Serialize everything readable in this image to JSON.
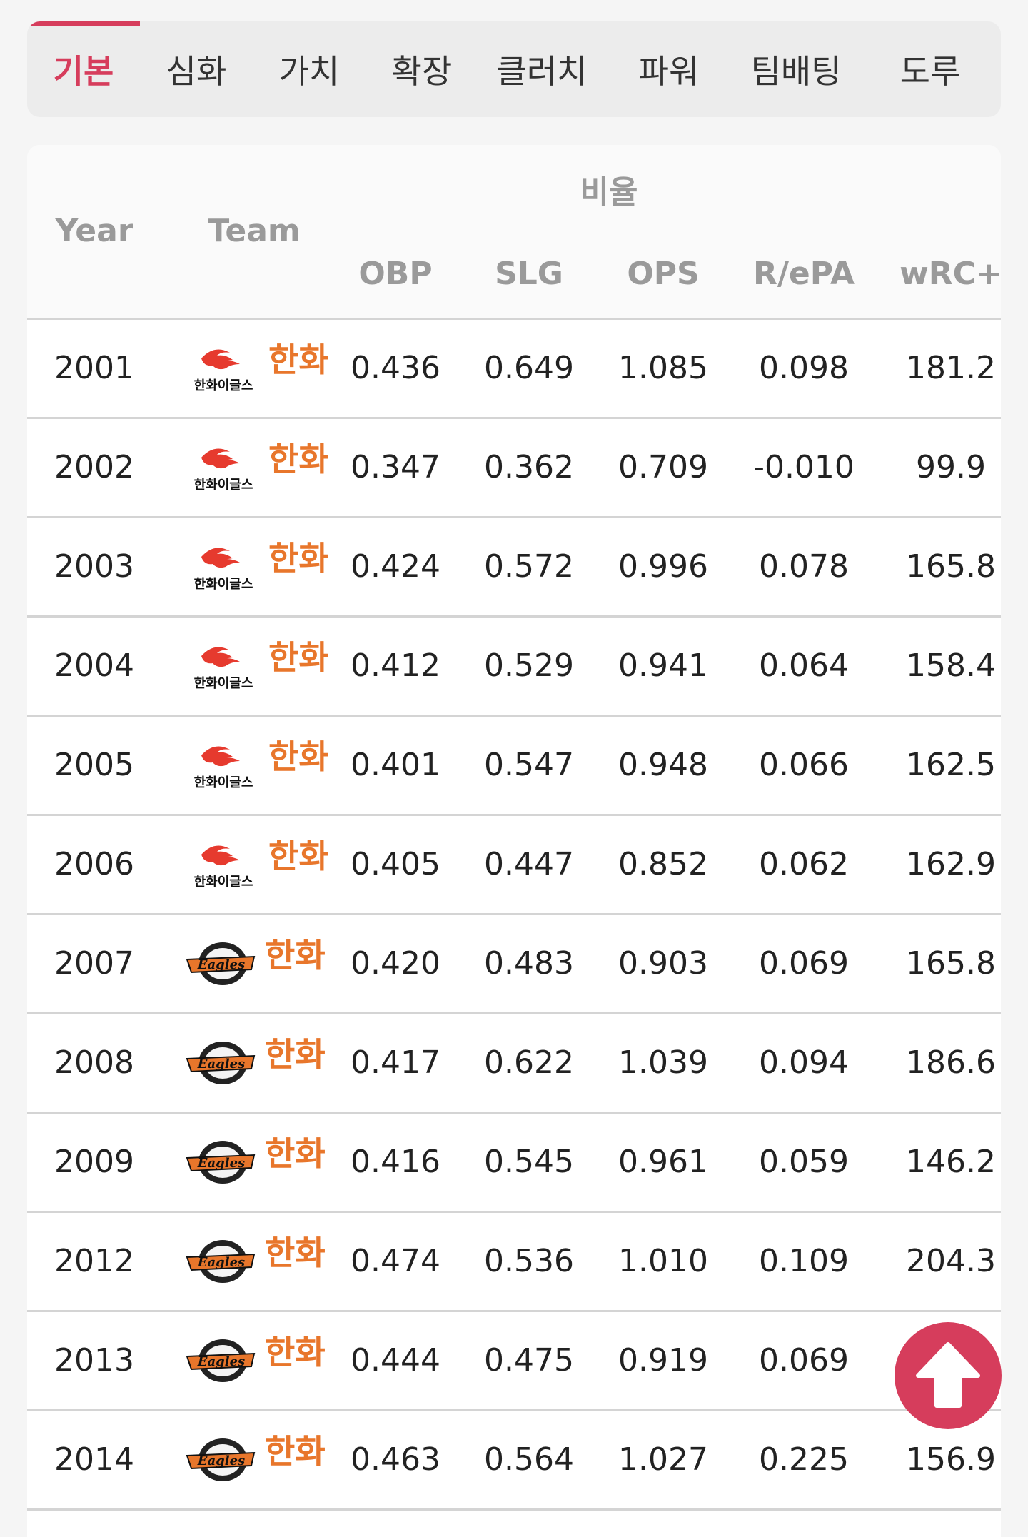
{
  "tabs": [
    "기본",
    "심화",
    "가치",
    "확장",
    "클러치",
    "파워",
    "팀배팅",
    "도루"
  ],
  "table": {
    "group_label": "비율",
    "col_year": "Year",
    "col_team": "Team",
    "stat_cols": [
      "OBP",
      "SLG",
      "OPS",
      "R/ePA",
      "wRC+"
    ],
    "rows": [
      {
        "year": "2001",
        "logo": "hanwha-eagles-old-logo",
        "team": "한화",
        "stats": [
          "0.436",
          "0.649",
          "1.085",
          "0.098",
          "181.2"
        ]
      },
      {
        "year": "2002",
        "logo": "hanwha-eagles-old-logo",
        "team": "한화",
        "stats": [
          "0.347",
          "0.362",
          "0.709",
          "-0.010",
          "99.9"
        ]
      },
      {
        "year": "2003",
        "logo": "hanwha-eagles-old-logo",
        "team": "한화",
        "stats": [
          "0.424",
          "0.572",
          "0.996",
          "0.078",
          "165.8"
        ]
      },
      {
        "year": "2004",
        "logo": "hanwha-eagles-old-logo",
        "team": "한화",
        "stats": [
          "0.412",
          "0.529",
          "0.941",
          "0.064",
          "158.4"
        ]
      },
      {
        "year": "2005",
        "logo": "hanwha-eagles-old-logo",
        "team": "한화",
        "stats": [
          "0.401",
          "0.547",
          "0.948",
          "0.066",
          "162.5"
        ]
      },
      {
        "year": "2006",
        "logo": "hanwha-eagles-old-logo",
        "team": "한화",
        "stats": [
          "0.405",
          "0.447",
          "0.852",
          "0.062",
          "162.9"
        ]
      },
      {
        "year": "2007",
        "logo": "eagles-emblem-logo",
        "team": "한화",
        "stats": [
          "0.420",
          "0.483",
          "0.903",
          "0.069",
          "165.8"
        ]
      },
      {
        "year": "2008",
        "logo": "eagles-emblem-logo",
        "team": "한화",
        "stats": [
          "0.417",
          "0.622",
          "1.039",
          "0.094",
          "186.6"
        ]
      },
      {
        "year": "2009",
        "logo": "eagles-emblem-logo",
        "team": "한화",
        "stats": [
          "0.416",
          "0.545",
          "0.961",
          "0.059",
          "146.2"
        ]
      },
      {
        "year": "2012",
        "logo": "eagles-emblem-logo",
        "team": "한화",
        "stats": [
          "0.474",
          "0.536",
          "1.010",
          "0.109",
          "204.3"
        ]
      },
      {
        "year": "2013",
        "logo": "eagles-emblem-logo",
        "team": "한화",
        "stats": [
          "0.444",
          "0.475",
          "0.919",
          "0.069",
          ""
        ]
      },
      {
        "year": "2014",
        "logo": "eagles-emblem-logo",
        "team": "한화",
        "stats": [
          "0.463",
          "0.564",
          "1.027",
          "0.225",
          "156.9"
        ]
      }
    ]
  },
  "old_logo_text": "한화이글스",
  "emblem_text": "Eagles",
  "scroll_top_icon": "arrow-up-icon",
  "colors": {
    "accent": "#d63d5c",
    "team_orange": "#e8762b"
  }
}
